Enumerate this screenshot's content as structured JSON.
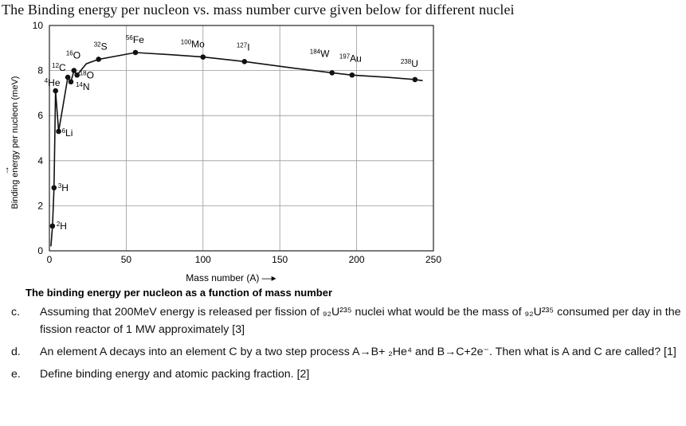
{
  "title": "The Binding energy per nucleon vs. mass number curve given below for different nuclei",
  "chart_data": {
    "type": "line",
    "xlabel": "Mass number (A) —▸",
    "ylabel": "Binding energy per nucleon (meV)",
    "ylabel_arrow": "→",
    "caption": "The binding energy per nucleon as a function of mass number",
    "xlim": [
      0,
      250
    ],
    "ylim": [
      0,
      10
    ],
    "xticks": [
      0,
      50,
      100,
      150,
      200,
      250
    ],
    "yticks": [
      0,
      2,
      4,
      6,
      8,
      10
    ],
    "grid": true,
    "points": [
      {
        "label": "2H",
        "sup": "2",
        "el": "H",
        "x": 2,
        "y": 1.1
      },
      {
        "label": "3H",
        "sup": "3",
        "el": "H",
        "x": 3,
        "y": 2.8
      },
      {
        "label": "4He",
        "sup": "4",
        "el": "He",
        "x": 4,
        "y": 7.1
      },
      {
        "label": "6Li",
        "sup": "6",
        "el": "Li",
        "x": 6,
        "y": 5.3
      },
      {
        "label": "12C",
        "sup": "12",
        "el": "C",
        "x": 12,
        "y": 7.7
      },
      {
        "label": "14N",
        "sup": "14",
        "el": "N",
        "x": 14,
        "y": 7.5
      },
      {
        "label": "16O",
        "sup": "16",
        "el": "O",
        "x": 16,
        "y": 8.0
      },
      {
        "label": "18O",
        "sup": "18",
        "el": "O",
        "x": 18,
        "y": 7.8
      },
      {
        "label": "32S",
        "sup": "32",
        "el": "S",
        "x": 32,
        "y": 8.5
      },
      {
        "label": "56Fe",
        "sup": "56",
        "el": "Fe",
        "x": 56,
        "y": 8.8
      },
      {
        "label": "100Mo",
        "sup": "100",
        "el": "Mo",
        "x": 100,
        "y": 8.6
      },
      {
        "label": "127I",
        "sup": "127",
        "el": "I",
        "x": 127,
        "y": 8.4
      },
      {
        "label": "184W",
        "sup": "184",
        "el": "W",
        "x": 184,
        "y": 7.9
      },
      {
        "label": "197Au",
        "sup": "197",
        "el": "Au",
        "x": 197,
        "y": 7.8
      },
      {
        "label": "238U",
        "sup": "238",
        "el": "U",
        "x": 238,
        "y": 7.6
      }
    ],
    "curve": [
      [
        1,
        0.2
      ],
      [
        2,
        1.1
      ],
      [
        3,
        2.8
      ],
      [
        4,
        7.1
      ],
      [
        6,
        5.3
      ],
      [
        9,
        6.5
      ],
      [
        12,
        7.7
      ],
      [
        14,
        7.5
      ],
      [
        16,
        8.0
      ],
      [
        18,
        7.8
      ],
      [
        24,
        8.3
      ],
      [
        32,
        8.5
      ],
      [
        56,
        8.8
      ],
      [
        80,
        8.7
      ],
      [
        100,
        8.6
      ],
      [
        127,
        8.4
      ],
      [
        160,
        8.1
      ],
      [
        184,
        7.9
      ],
      [
        197,
        7.8
      ],
      [
        220,
        7.7
      ],
      [
        238,
        7.6
      ],
      [
        243,
        7.55
      ]
    ]
  },
  "questions": [
    {
      "marker": "c.",
      "text": "Assuming that 200MeV energy is released  per fission of ₉₂U²³⁵ nuclei what would be the mass of ₉₂U²³⁵ consumed per day in the fission reactor of 1 MW approximately [3]"
    },
    {
      "marker": "d.",
      "text": "An element A decays into an element C by a two step process A→B+ ₂He⁴ and B→C+2e⁻. Then what is A and C are called? [1]"
    },
    {
      "marker": "e.",
      "text": "Define binding energy and atomic packing fraction. [2]"
    }
  ]
}
